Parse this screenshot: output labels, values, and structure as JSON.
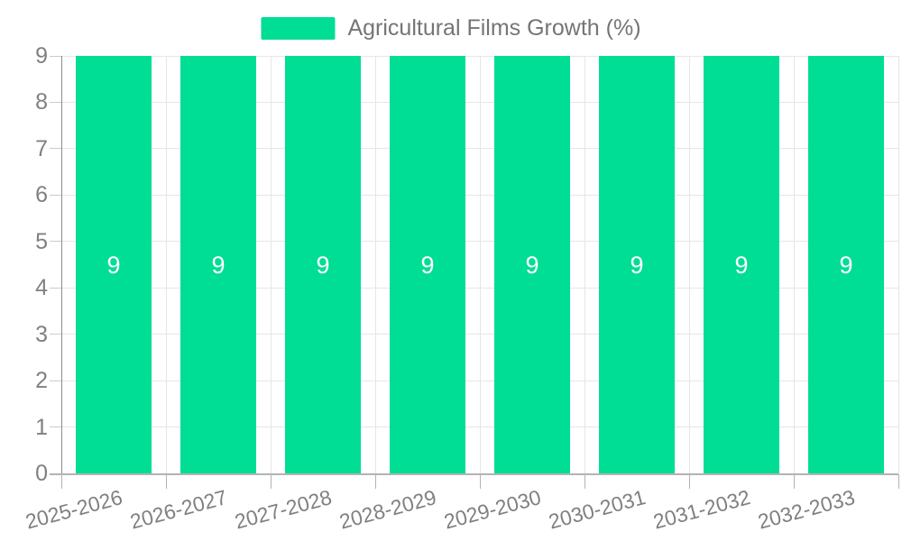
{
  "chart_data": {
    "type": "bar",
    "title": "Agricultural Films Growth (%)",
    "categories": [
      "2025-2026",
      "2026-2027",
      "2027-2028",
      "2028-2029",
      "2029-2030",
      "2030-2031",
      "2031-2032",
      "2032-2033"
    ],
    "series": [
      {
        "name": "Agricultural Films Growth (%)",
        "values": [
          9,
          9,
          9,
          9,
          9,
          9,
          9,
          9
        ]
      }
    ],
    "bar_labels": [
      "9",
      "9",
      "9",
      "9",
      "9",
      "9",
      "9",
      "9"
    ],
    "xlabel": "",
    "ylabel": "",
    "ylim": [
      0,
      9
    ],
    "yticks": [
      0,
      1,
      2,
      3,
      4,
      5,
      6,
      7,
      8,
      9
    ],
    "grid": "on",
    "legend_position": "top-center",
    "x_label_rotation_deg": -15
  },
  "colors": {
    "bar": "#00dd94",
    "bar_label": "#ffffff",
    "axis_text": "#808080",
    "legend_text": "#757575",
    "gridline": "#e6e6e6",
    "y_axis_line": "#8c8c8c",
    "x_axis_line": "#b3b3b3",
    "background": "#ffffff"
  }
}
